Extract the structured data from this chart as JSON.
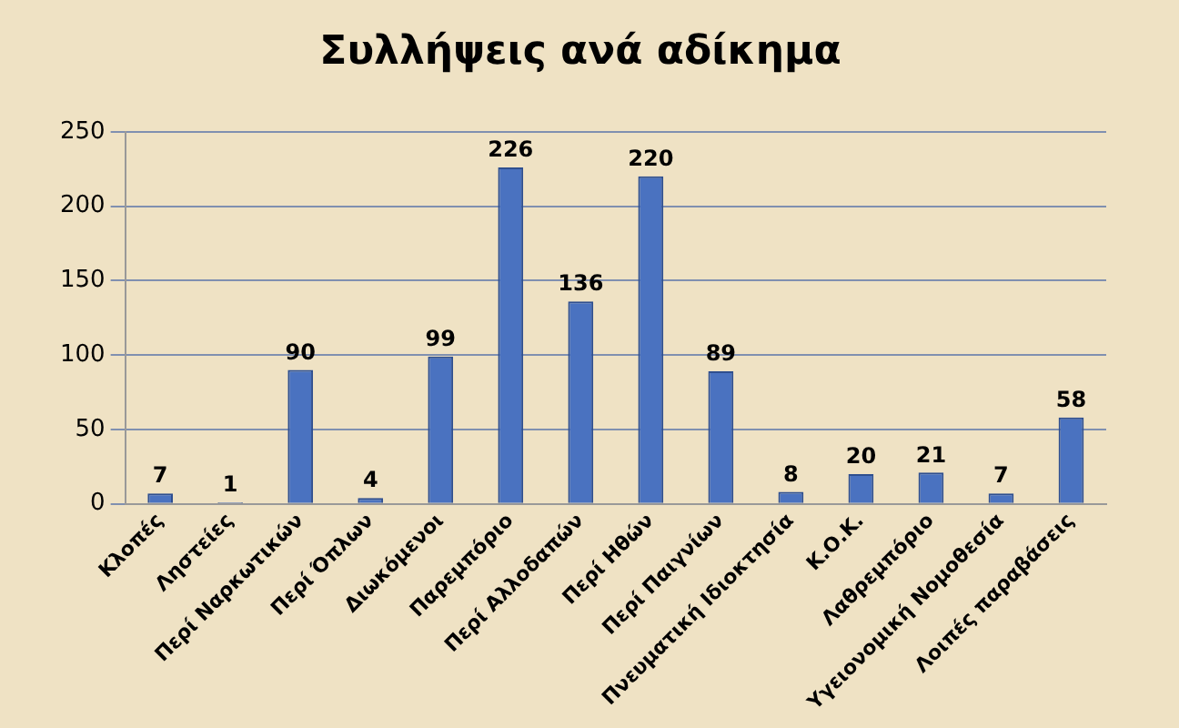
{
  "chart_data": {
    "type": "bar",
    "title": "Συλλήψεις ανά αδίκημα",
    "categories": [
      "Κλοπές",
      "Ληστείες",
      "Περί Ναρκωτικών",
      "Περί Όπλων",
      "Διωκόμενοι",
      "Παρεμπόριο",
      "Περί Αλλοδαπών",
      "Περί Ηθών",
      "Περί Παιγνίων",
      "Πνευματική Ιδιοκτησία",
      "Κ.Ο.Κ.",
      "Λαθρεμπόριο",
      "Υγειονομική Νομοθεσία",
      "Λοιπές παραβάσεις"
    ],
    "values": [
      7,
      1,
      90,
      4,
      99,
      226,
      136,
      220,
      89,
      8,
      20,
      21,
      7,
      58
    ],
    "color": "#4a72c0",
    "ylim": [
      0,
      250
    ],
    "yticks": [
      0,
      50,
      100,
      150,
      200,
      250
    ],
    "grid": "y",
    "data_labels": true,
    "legend": false
  }
}
